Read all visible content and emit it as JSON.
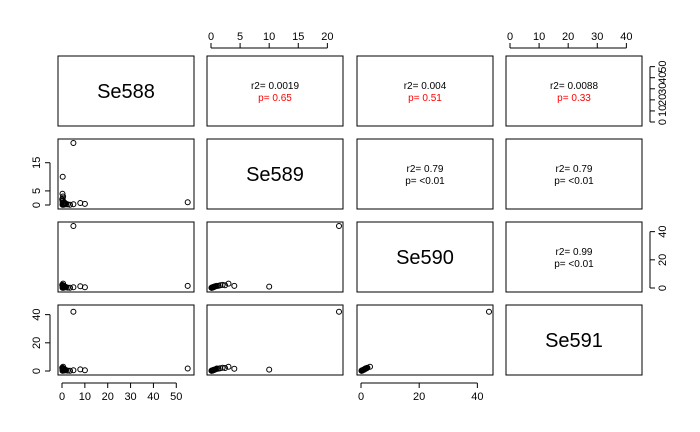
{
  "chart_data": {
    "type": "scatter-matrix",
    "variables": [
      "Se588",
      "Se589",
      "Se590",
      "Se591"
    ],
    "ranges": {
      "Se588": [
        0,
        56
      ],
      "Se589": [
        0,
        22
      ],
      "Se590": [
        0,
        44
      ],
      "Se591": [
        0,
        44
      ]
    },
    "ticks": {
      "Se588": [
        0,
        10,
        20,
        30,
        40,
        50
      ],
      "Se589": [
        0,
        5,
        10,
        15,
        20
      ],
      "Se590": [
        0,
        20,
        40
      ],
      "Se591": [
        0,
        10,
        20,
        30,
        40
      ]
    },
    "left_ticks": {
      "Se589": [
        0,
        5,
        15
      ],
      "Se591": [
        0,
        20,
        40
      ]
    },
    "correlations": [
      {
        "row": "Se588",
        "col": "Se589",
        "r2": "r2= 0.0019",
        "p": "p= 0.65",
        "p_color": "#ff0000"
      },
      {
        "row": "Se588",
        "col": "Se590",
        "r2": "r2= 0.004",
        "p": "p= 0.51",
        "p_color": "#ff0000"
      },
      {
        "row": "Se588",
        "col": "Se591",
        "r2": "r2= 0.0088",
        "p": "p= 0.33",
        "p_color": "#ff0000"
      },
      {
        "row": "Se589",
        "col": "Se590",
        "r2": "r2= 0.79",
        "p": "p= <0.01",
        "p_color": "#000000"
      },
      {
        "row": "Se589",
        "col": "Se591",
        "r2": "r2= 0.79",
        "p": "p= <0.01",
        "p_color": "#000000"
      },
      {
        "row": "Se590",
        "col": "Se591",
        "r2": "r2= 0.99",
        "p": "p= <0.01",
        "p_color": "#000000"
      }
    ],
    "observations": [
      {
        "Se588": 0.2,
        "Se589": 0.1,
        "Se590": 0.2,
        "Se591": 0.2
      },
      {
        "Se588": 0.4,
        "Se589": 0.2,
        "Se590": 0.3,
        "Se591": 0.3
      },
      {
        "Se588": 0.5,
        "Se589": 0.3,
        "Se590": 0.5,
        "Se591": 0.5
      },
      {
        "Se588": 0.7,
        "Se589": 0.1,
        "Se590": 0.2,
        "Se591": 0.3
      },
      {
        "Se588": 0.8,
        "Se589": 0.4,
        "Se590": 0.6,
        "Se591": 0.6
      },
      {
        "Se588": 1.0,
        "Se589": 0.2,
        "Se590": 0.4,
        "Se591": 0.4
      },
      {
        "Se588": 1.2,
        "Se589": 0.5,
        "Se590": 0.8,
        "Se591": 0.8
      },
      {
        "Se588": 0.3,
        "Se589": 0.6,
        "Se590": 1.0,
        "Se591": 1.0
      },
      {
        "Se588": 0.6,
        "Se589": 0.8,
        "Se590": 1.2,
        "Se591": 1.2
      },
      {
        "Se588": 0.9,
        "Se589": 1.0,
        "Se590": 1.4,
        "Se591": 1.5
      },
      {
        "Se588": 0.2,
        "Se589": 1.3,
        "Se590": 1.6,
        "Se591": 1.7
      },
      {
        "Se588": 0.4,
        "Se589": 1.6,
        "Se590": 1.9,
        "Se591": 2.0
      },
      {
        "Se588": 0.1,
        "Se589": 2.0,
        "Se590": 2.2,
        "Se591": 2.3
      },
      {
        "Se588": 0.3,
        "Se589": 2.4,
        "Se590": 2.0,
        "Se591": 2.1
      },
      {
        "Se588": 0.5,
        "Se589": 3.0,
        "Se590": 3.1,
        "Se591": 3.0
      },
      {
        "Se588": 0.2,
        "Se589": 4.0,
        "Se590": 1.5,
        "Se591": 1.6
      },
      {
        "Se588": 1.5,
        "Se589": 0.6,
        "Se590": 0.9,
        "Se591": 0.9
      },
      {
        "Se588": 1.8,
        "Se589": 0.3,
        "Se590": 0.5,
        "Se591": 0.4
      },
      {
        "Se588": 2.5,
        "Se589": 0.2,
        "Se590": 0.3,
        "Se591": 0.3
      },
      {
        "Se588": 3.5,
        "Se589": 0.1,
        "Se590": 0.2,
        "Se591": 0.2
      },
      {
        "Se588": 5.0,
        "Se589": 0.3,
        "Se590": 0.6,
        "Se591": 0.6
      },
      {
        "Se588": 8.0,
        "Se589": 0.7,
        "Se590": 1.2,
        "Se591": 1.1
      },
      {
        "Se588": 10.0,
        "Se589": 0.4,
        "Se590": 0.5,
        "Se591": 0.5
      },
      {
        "Se588": 0.3,
        "Se589": 10.0,
        "Se590": 1.0,
        "Se591": 1.0
      },
      {
        "Se588": 5.0,
        "Se589": 22.0,
        "Se590": 44.0,
        "Se591": 42.0
      },
      {
        "Se588": 55.0,
        "Se589": 1.0,
        "Se590": 1.5,
        "Se591": 1.8
      }
    ]
  }
}
